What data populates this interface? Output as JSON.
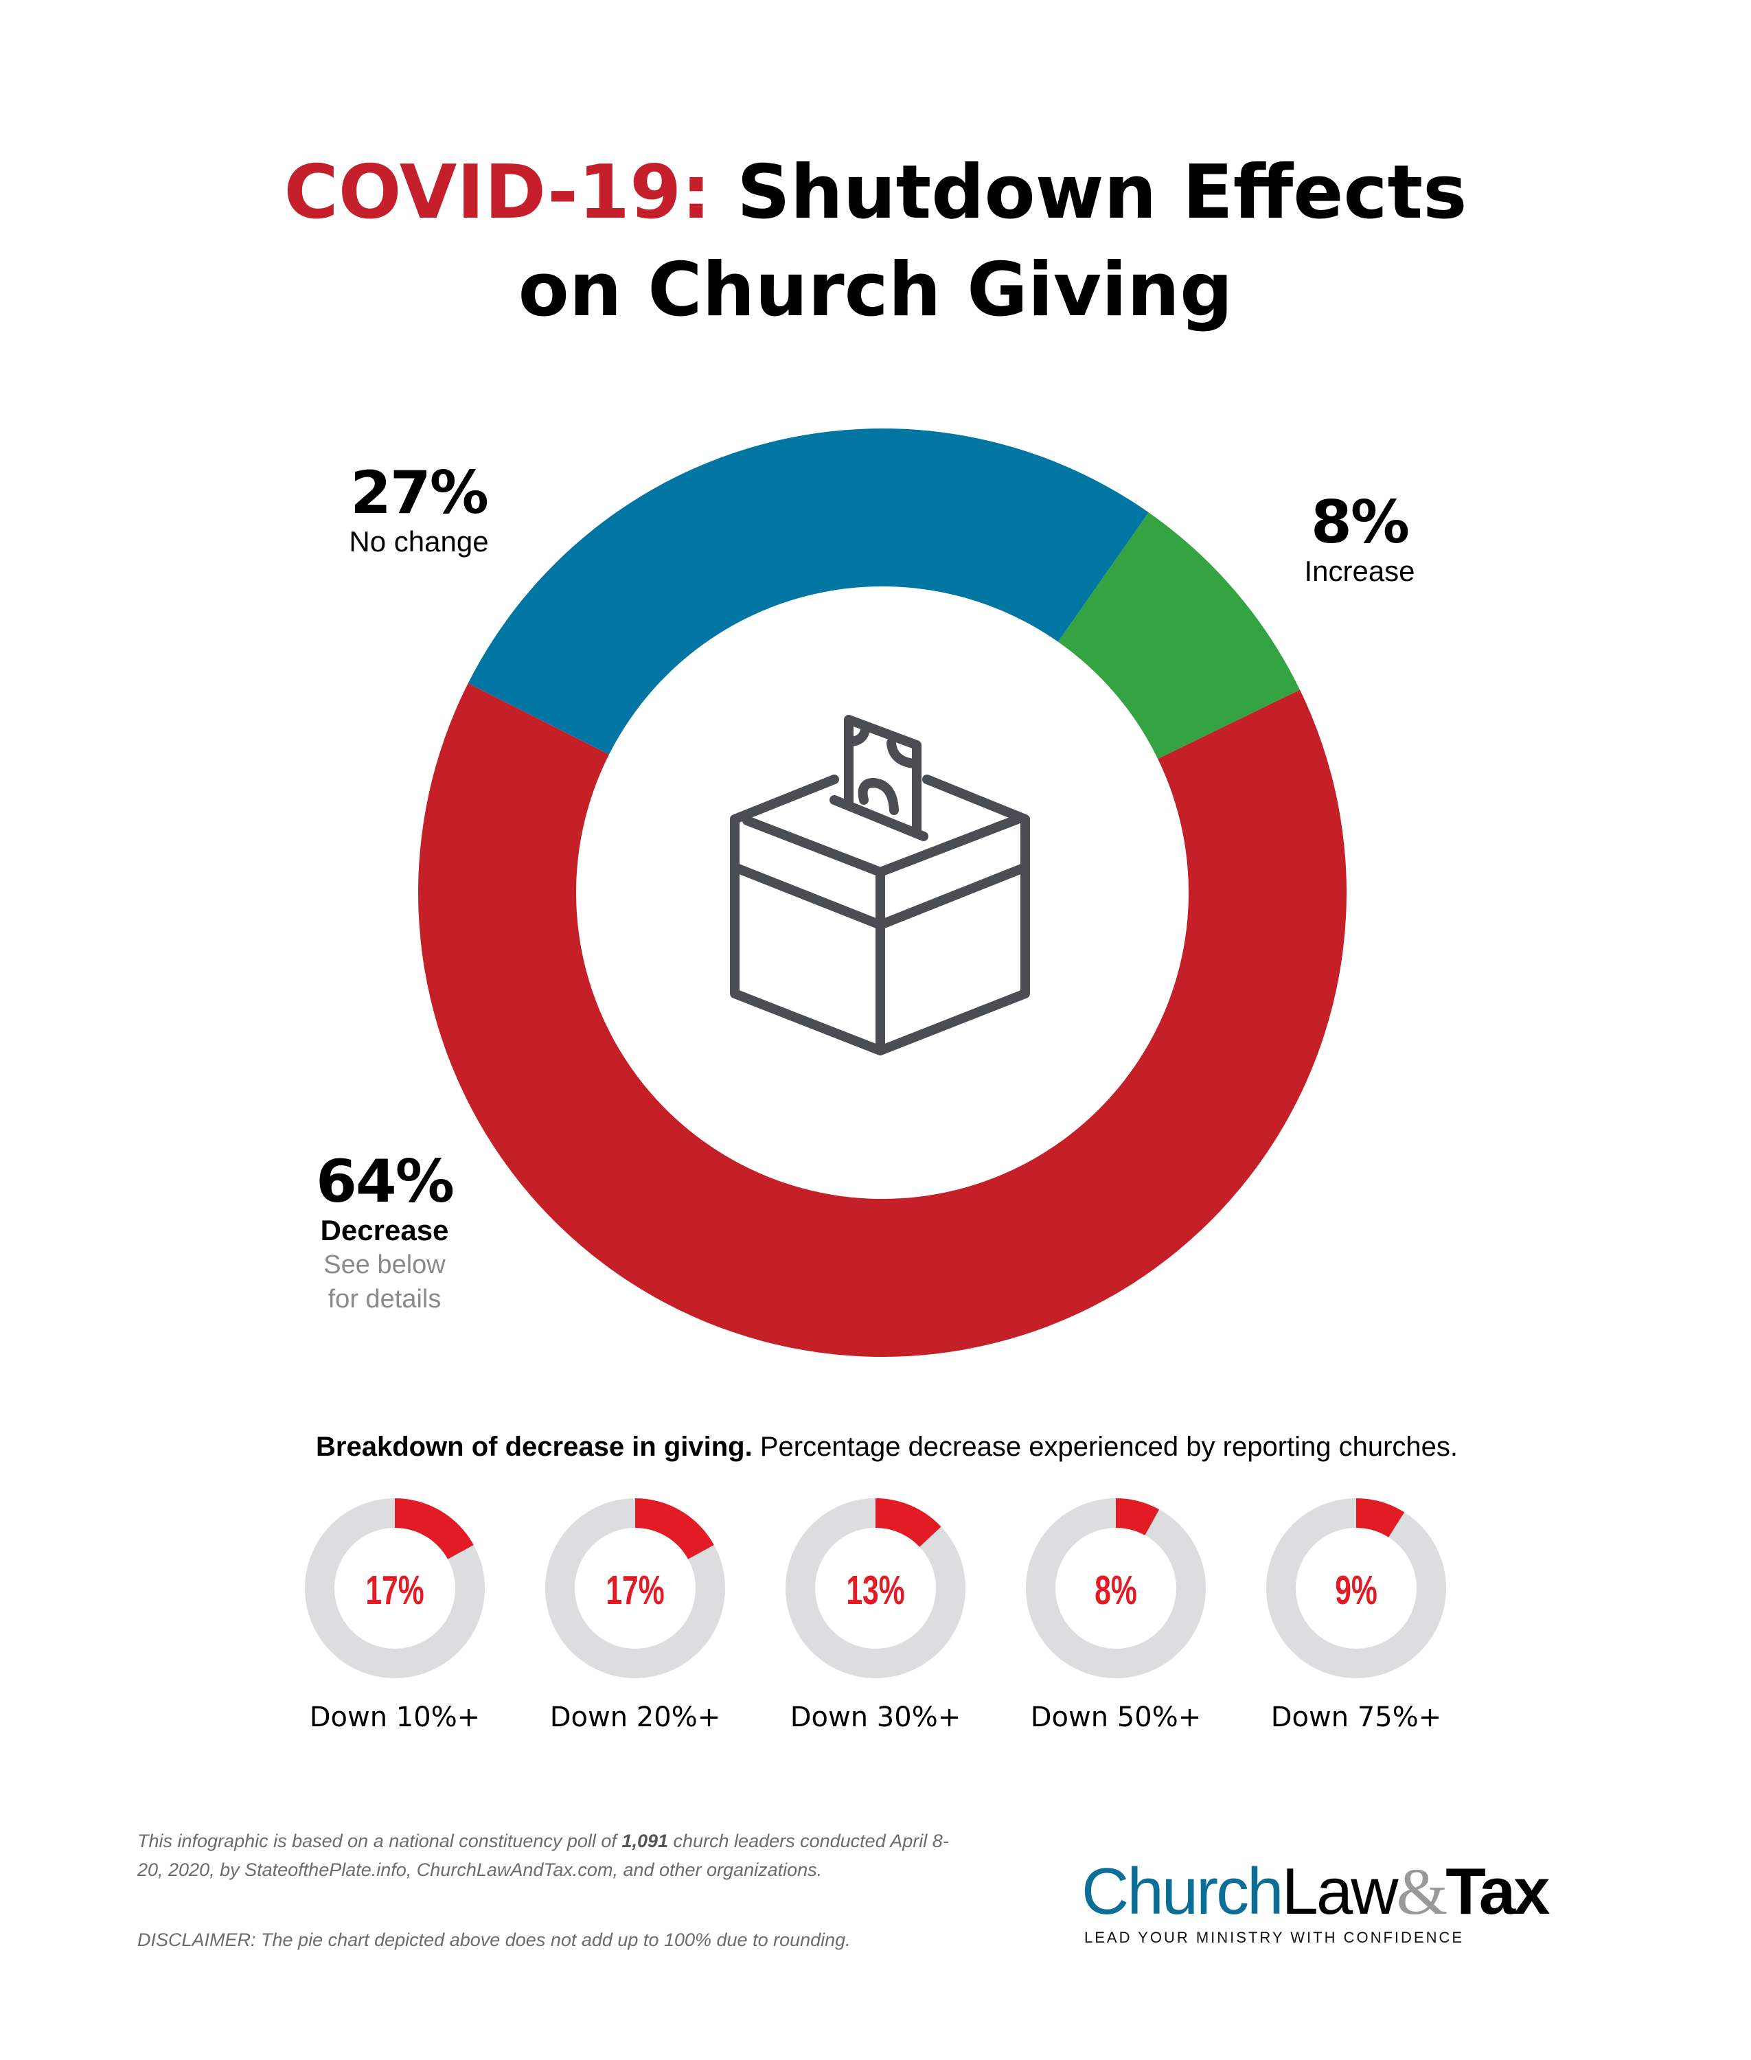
{
  "title": {
    "accent": "COVID-19:",
    "rest_line1": "Shutdown Effects",
    "line2": "on Church Giving"
  },
  "colors": {
    "decrease": "#C51F28",
    "no_change": "#0176A2",
    "increase": "#34A443",
    "small_fill": "#E21B24",
    "small_track": "#DCDDDE",
    "icon": "#4A4D54"
  },
  "center_icon": "ballot-box-with-money-icon",
  "chart_data": [
    {
      "type": "pie",
      "title": "COVID-19: Shutdown Effects on Church Giving",
      "style": "donut",
      "slices": [
        {
          "label": "Increase",
          "value": 8,
          "display": "8%",
          "color": "#34A443"
        },
        {
          "label": "Decrease",
          "value": 64,
          "display": "64%",
          "color": "#C51F28",
          "note": [
            "See below",
            "for details"
          ]
        },
        {
          "label": "No change",
          "value": 27,
          "display": "27%",
          "color": "#0176A2"
        }
      ],
      "total_note": "does not add up to 100% due to rounding"
    },
    {
      "type": "pie",
      "title": "Breakdown of decrease in giving.",
      "subtitle": "Percentage decrease experienced by reporting churches.",
      "style": "donut-progress",
      "items": [
        {
          "label": "Down 10%+",
          "value": 17,
          "display": "17%"
        },
        {
          "label": "Down 20%+",
          "value": 17,
          "display": "17%"
        },
        {
          "label": "Down 30%+",
          "value": 13,
          "display": "13%"
        },
        {
          "label": "Down 50%+",
          "value": 8,
          "display": "8%"
        },
        {
          "label": "Down 75%+",
          "value": 9,
          "display": "9%"
        }
      ]
    }
  ],
  "breakdown": {
    "heading_bold": "Breakdown of decrease in giving.",
    "heading_rest": "Percentage decrease experienced by reporting churches."
  },
  "footnote": {
    "part1": "This infographic is based on a national constituency poll of ",
    "count": "1,091",
    "part2": " church leaders conducted April 8-20, 2020, by StateofthePlate.info, ChurchLawAndTax.com, and other organizations.",
    "disclaimer": "DISCLAIMER: The pie chart depicted above does not add up to 100% due to rounding."
  },
  "logo": {
    "church": "Church",
    "law": "Law",
    "amp": "&",
    "tax": "Tax",
    "tagline": "LEAD YOUR MINISTRY WITH CONFIDENCE"
  }
}
